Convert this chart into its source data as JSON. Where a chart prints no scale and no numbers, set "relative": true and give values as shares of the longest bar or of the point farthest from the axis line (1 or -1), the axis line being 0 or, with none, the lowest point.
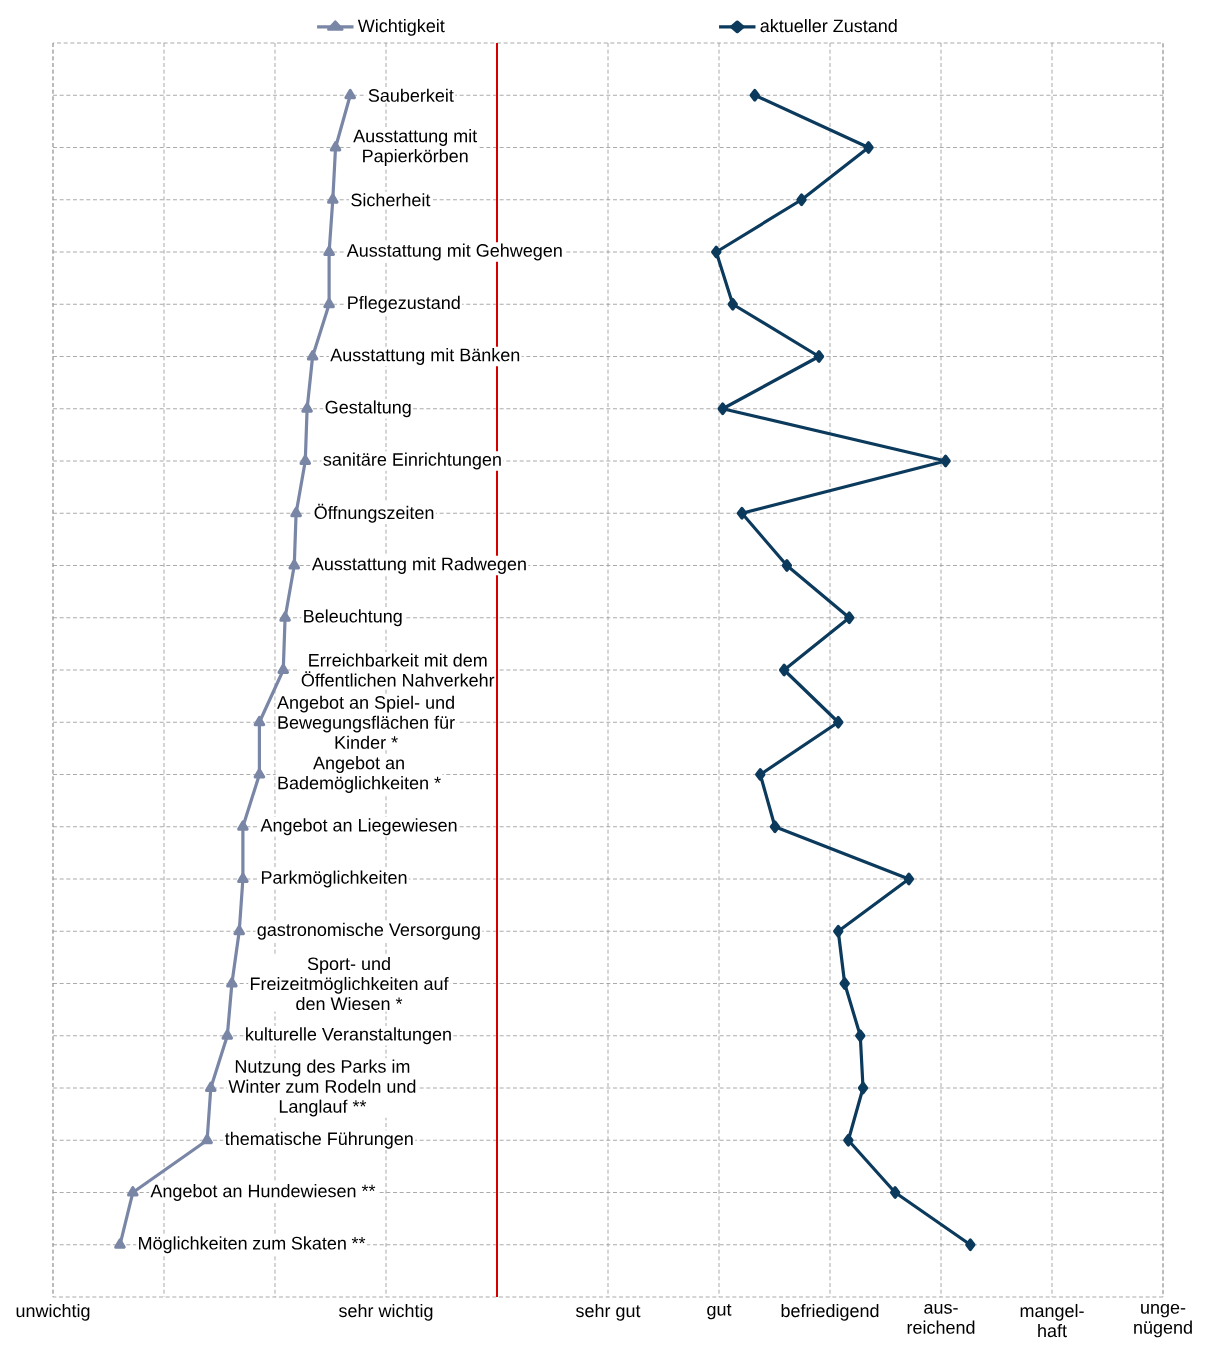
{
  "chart_data": {
    "type": "line",
    "categories": [
      "Sauberkeit",
      "Ausstattung mit Papierkörben",
      "Sicherheit",
      "Ausstattung mit Gehwegen",
      "Pflegezustand",
      "Ausstattung mit Bänken",
      "Gestaltung",
      "sanitäre Einrichtungen",
      "Öffnungszeiten",
      "Ausstattung mit Radwegen",
      "Beleuchtung",
      "Erreichbarkeit mit dem Öffentlichen Nahverkehr",
      "Angebot an Spiel- und Bewegungsflächen für Kinder *",
      "Angebot an Bademöglichkeiten *",
      "Angebot an Liegewiesen",
      "Parkmöglichkeiten",
      "gastronomische Versorgung",
      "Sport- und Freizeitmöglichkeiten auf den Wiesen *",
      "kulturelle Veranstaltungen",
      "Nutzung des Parks im Winter zum Rodeln und Langlauf **",
      "thematische Führungen",
      "Angebot an Hundewiesen **",
      "Möglichkeiten zum Skaten **"
    ],
    "orientation": "horizontal",
    "relative": true,
    "series": [
      {
        "name": "Wichtigkeit",
        "color": "#7a86a6",
        "marker": "triangle",
        "values": [
          0.324,
          0.308,
          0.305,
          0.301,
          0.301,
          0.283,
          0.277,
          0.275,
          0.265,
          0.263,
          0.253,
          0.251,
          0.225,
          0.225,
          0.207,
          0.207,
          0.203,
          0.195,
          0.19,
          0.172,
          0.168,
          0.087,
          0.073
        ]
      },
      {
        "name": "aktueller Zustand",
        "color": "#0b3a5c",
        "marker": "diamond",
        "values": [
          0.765,
          0.889,
          0.816,
          0.723,
          0.741,
          0.835,
          0.73,
          0.973,
          0.751,
          0.8,
          0.868,
          0.797,
          0.856,
          0.771,
          0.787,
          0.933,
          0.856,
          0.863,
          0.88,
          0.883,
          0.867,
          0.918,
          1
        ]
      }
    ],
    "annotations": [
      "unwichtig",
      "sehr wichtig",
      "sehr gut",
      "gut",
      "befriedigend",
      "aus- reichend",
      "mangel- haft",
      "unge- nügend"
    ],
    "ref_lines": [
      {
        "axis": "x",
        "value": 0.484,
        "color": "#d40000"
      }
    ],
    "grid": true,
    "legend": "top",
    "line_style": "solid"
  }
}
